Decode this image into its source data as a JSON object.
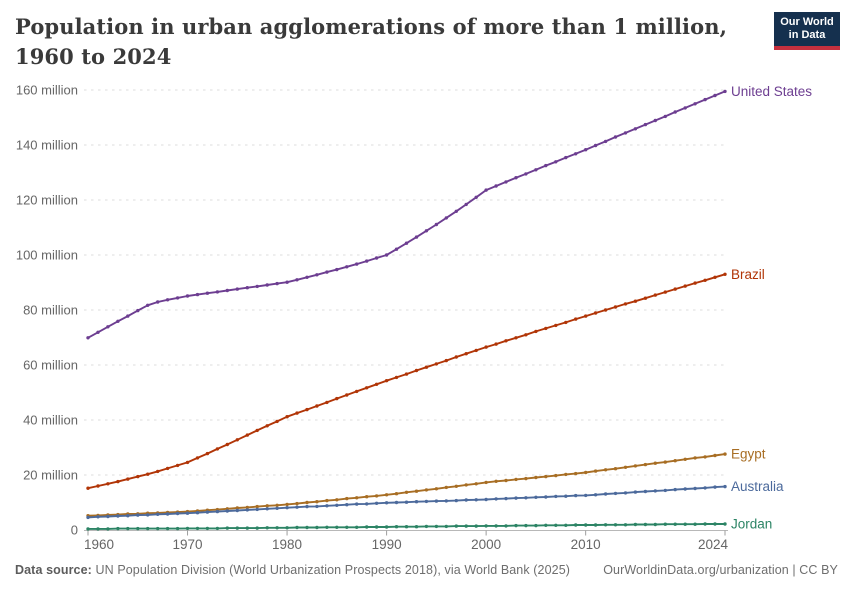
{
  "header": {
    "title": "Population in urban agglomerations of more than 1 million, 1960 to 2024",
    "logo": {
      "line1": "Our World",
      "line2": "in Data",
      "bg_color": "#15304E",
      "bar_color": "#C5303E"
    }
  },
  "footer": {
    "source_label": "Data source:",
    "source_text": " UN Population Division (World Urbanization Prospects 2018), via World Bank (2025)",
    "link_text": "OurWorldinData.org/urbanization | CC BY"
  },
  "chart_data": {
    "type": "line",
    "title": "Population in urban agglomerations of more than 1 million, 1960 to 2024",
    "unit": "million",
    "ylim": [
      0,
      160
    ],
    "yticks": [
      0,
      20,
      40,
      60,
      80,
      100,
      120,
      140,
      160
    ],
    "ytick_labels": [
      "0",
      "20 million",
      "40 million",
      "60 million",
      "80 million",
      "100 million",
      "120 million",
      "140 million",
      "160 million"
    ],
    "xticks": [
      1960,
      1970,
      1980,
      1990,
      2000,
      2010,
      2024
    ],
    "grid": "dashed-horizontal",
    "legend_position": "right-end-labels",
    "axis_colors": {
      "grid": "#dcdcdc",
      "domain": "#b8b8b8",
      "tick": "#9e9e9e",
      "label": "#666666"
    },
    "x": [
      1960,
      1961,
      1962,
      1963,
      1964,
      1965,
      1966,
      1967,
      1968,
      1969,
      1970,
      1971,
      1972,
      1973,
      1974,
      1975,
      1976,
      1977,
      1978,
      1979,
      1980,
      1981,
      1982,
      1983,
      1984,
      1985,
      1986,
      1987,
      1988,
      1989,
      1990,
      1991,
      1992,
      1993,
      1994,
      1995,
      1996,
      1997,
      1998,
      1999,
      2000,
      2001,
      2002,
      2003,
      2004,
      2005,
      2006,
      2007,
      2008,
      2009,
      2010,
      2011,
      2012,
      2013,
      2014,
      2015,
      2016,
      2017,
      2018,
      2019,
      2020,
      2021,
      2022,
      2023,
      2024
    ],
    "series": [
      {
        "name": "United States",
        "color": "#6D3E91",
        "values": [
          69.9,
          71.9,
          73.9,
          75.9,
          77.8,
          79.8,
          81.7,
          82.9,
          83.7,
          84.4,
          85.1,
          85.6,
          86.1,
          86.6,
          87.1,
          87.6,
          88.1,
          88.6,
          89.1,
          89.6,
          90.1,
          91.0,
          91.9,
          92.8,
          93.8,
          94.7,
          95.7,
          96.7,
          97.8,
          98.9,
          100.0,
          102.1,
          104.3,
          106.5,
          108.8,
          111.1,
          113.5,
          115.9,
          118.4,
          121.0,
          123.6,
          125.1,
          126.6,
          128.1,
          129.5,
          131.0,
          132.5,
          133.9,
          135.4,
          136.8,
          138.3,
          139.8,
          141.3,
          142.9,
          144.4,
          145.9,
          147.4,
          148.9,
          150.4,
          152.0,
          153.5,
          155.0,
          156.5,
          158.0,
          159.5
        ]
      },
      {
        "name": "Brazil",
        "color": "#B13507",
        "values": [
          15.2,
          16.0,
          16.8,
          17.6,
          18.5,
          19.4,
          20.3,
          21.3,
          22.4,
          23.5,
          24.6,
          26.2,
          27.8,
          29.5,
          31.1,
          32.8,
          34.5,
          36.2,
          37.9,
          39.5,
          41.2,
          42.5,
          43.8,
          45.1,
          46.4,
          47.8,
          49.1,
          50.4,
          51.7,
          53.0,
          54.3,
          55.5,
          56.7,
          58.0,
          59.2,
          60.4,
          61.6,
          62.9,
          64.1,
          65.3,
          66.5,
          67.6,
          68.8,
          69.9,
          71.0,
          72.2,
          73.3,
          74.4,
          75.5,
          76.7,
          77.8,
          78.9,
          80.0,
          81.1,
          82.2,
          83.2,
          84.3,
          85.4,
          86.5,
          87.6,
          88.7,
          89.8,
          90.8,
          91.9,
          93.0
        ]
      },
      {
        "name": "Egypt",
        "color": "#A86E24",
        "values": [
          5.2,
          5.3,
          5.5,
          5.6,
          5.8,
          5.9,
          6.1,
          6.2,
          6.4,
          6.5,
          6.7,
          6.9,
          7.2,
          7.4,
          7.7,
          8.0,
          8.2,
          8.5,
          8.8,
          9.0,
          9.3,
          9.6,
          10.0,
          10.3,
          10.7,
          11.0,
          11.4,
          11.7,
          12.1,
          12.4,
          12.8,
          13.2,
          13.7,
          14.1,
          14.6,
          15.0,
          15.5,
          15.9,
          16.4,
          16.8,
          17.3,
          17.7,
          18.0,
          18.4,
          18.7,
          19.1,
          19.4,
          19.8,
          20.2,
          20.5,
          20.9,
          21.4,
          21.9,
          22.3,
          22.8,
          23.3,
          23.8,
          24.3,
          24.7,
          25.2,
          25.7,
          26.2,
          26.6,
          27.1,
          27.6
        ]
      },
      {
        "name": "Australia",
        "color": "#4C6A9C",
        "values": [
          4.6,
          4.8,
          4.9,
          5.1,
          5.2,
          5.4,
          5.5,
          5.7,
          5.8,
          6.0,
          6.1,
          6.3,
          6.5,
          6.7,
          6.9,
          7.1,
          7.3,
          7.5,
          7.7,
          7.9,
          8.1,
          8.3,
          8.5,
          8.6,
          8.8,
          9.0,
          9.2,
          9.4,
          9.5,
          9.7,
          9.9,
          10.0,
          10.1,
          10.3,
          10.4,
          10.5,
          10.6,
          10.7,
          10.9,
          11.0,
          11.1,
          11.3,
          11.4,
          11.6,
          11.7,
          11.9,
          12.0,
          12.2,
          12.3,
          12.5,
          12.6,
          12.8,
          13.1,
          13.3,
          13.5,
          13.8,
          14.0,
          14.2,
          14.4,
          14.7,
          14.9,
          15.1,
          15.3,
          15.6,
          15.8
        ]
      },
      {
        "name": "Jordan",
        "color": "#2C8465",
        "values": [
          0.4,
          0.4,
          0.4,
          0.5,
          0.5,
          0.5,
          0.5,
          0.5,
          0.5,
          0.5,
          0.6,
          0.6,
          0.6,
          0.6,
          0.7,
          0.7,
          0.7,
          0.7,
          0.8,
          0.8,
          0.8,
          0.9,
          0.9,
          0.9,
          1.0,
          1.0,
          1.0,
          1.0,
          1.1,
          1.1,
          1.1,
          1.2,
          1.2,
          1.2,
          1.3,
          1.3,
          1.3,
          1.4,
          1.4,
          1.4,
          1.5,
          1.5,
          1.5,
          1.6,
          1.6,
          1.6,
          1.7,
          1.7,
          1.7,
          1.8,
          1.8,
          1.8,
          1.9,
          1.9,
          1.9,
          2.0,
          2.0,
          2.0,
          2.1,
          2.1,
          2.1,
          2.1,
          2.2,
          2.2,
          2.2
        ]
      }
    ]
  }
}
